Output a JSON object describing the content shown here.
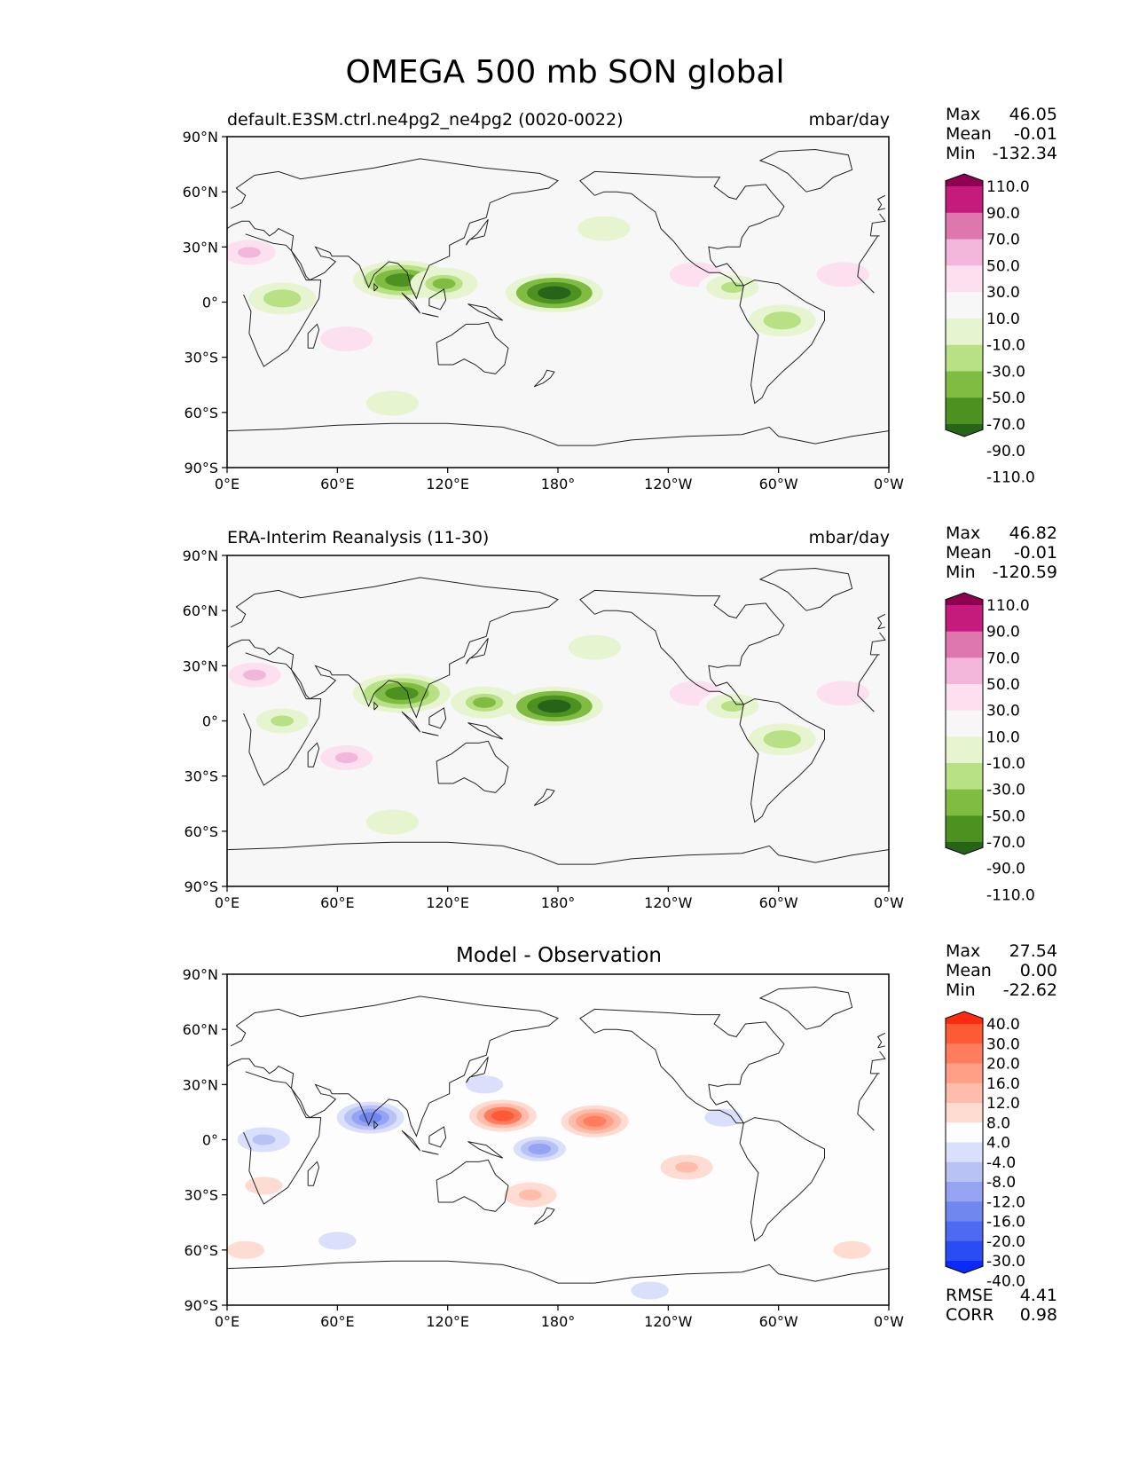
{
  "figure_title": "OMEGA 500 mb SON global",
  "x_ticks": [
    "0°E",
    "60°E",
    "120°E",
    "180°",
    "120°W",
    "60°W",
    "0°W"
  ],
  "y_ticks": [
    "90°N",
    "60°N",
    "30°N",
    "0°",
    "30°S",
    "60°S",
    "90°S"
  ],
  "colors": {
    "land_outline": "#222222",
    "map_background": "#f7f7f7",
    "diff_background": "#fdfdfd"
  },
  "chart_data": [
    {
      "type": "heatmap",
      "title": "default.E3SM.ctrl.ne4pg2_ne4pg2 (0020-0022)",
      "units": "mbar/day",
      "stats": {
        "max_label": "Max",
        "max": "46.05",
        "mean_label": "Mean",
        "mean": "-0.01",
        "min_label": "Min",
        "min": "-132.34"
      },
      "xlim": [
        0,
        360
      ],
      "ylim": [
        -90,
        90
      ],
      "colorbar": {
        "levels": [
          "110.0",
          "90.0",
          "70.0",
          "50.0",
          "30.0",
          "10.0",
          "-10.0",
          "-30.0",
          "-50.0",
          "-70.0",
          "-90.0",
          "-110.0"
        ],
        "colors": [
          "#8e0152",
          "#c51b7d",
          "#de77ae",
          "#f1b6da",
          "#fde0ef",
          "#f7f7f7",
          "#e6f5d0",
          "#b8e186",
          "#7fbc41",
          "#4d9221",
          "#276419"
        ]
      },
      "features": [
        {
          "lon": 12,
          "lat": 27,
          "value": 30
        },
        {
          "lon": 30,
          "lat": 2,
          "value": -45
        },
        {
          "lon": 65,
          "lat": -20,
          "value": 25
        },
        {
          "lon": 95,
          "lat": 12,
          "value": -85
        },
        {
          "lon": 118,
          "lat": 10,
          "value": -55
        },
        {
          "lon": 178,
          "lat": 5,
          "value": -115
        },
        {
          "lon": 205,
          "lat": 40,
          "value": -25
        },
        {
          "lon": 255,
          "lat": 15,
          "value": 20
        },
        {
          "lon": 275,
          "lat": 8,
          "value": -35
        },
        {
          "lon": 302,
          "lat": -10,
          "value": -50
        },
        {
          "lon": 335,
          "lat": 15,
          "value": 25
        },
        {
          "lon": 90,
          "lat": -55,
          "value": -25
        }
      ]
    },
    {
      "type": "heatmap",
      "title": "ERA-Interim Reanalysis (11-30)",
      "units": "mbar/day",
      "stats": {
        "max_label": "Max",
        "max": "46.82",
        "mean_label": "Mean",
        "mean": "-0.01",
        "min_label": "Min",
        "min": "-120.59"
      },
      "xlim": [
        0,
        360
      ],
      "ylim": [
        -90,
        90
      ],
      "colorbar": {
        "levels": [
          "110.0",
          "90.0",
          "70.0",
          "50.0",
          "30.0",
          "10.0",
          "-10.0",
          "-30.0",
          "-50.0",
          "-70.0",
          "-90.0",
          "-110.0"
        ],
        "colors": [
          "#8e0152",
          "#c51b7d",
          "#de77ae",
          "#f1b6da",
          "#fde0ef",
          "#f7f7f7",
          "#e6f5d0",
          "#b8e186",
          "#7fbc41",
          "#4d9221",
          "#276419"
        ]
      },
      "features": [
        {
          "lon": 15,
          "lat": 25,
          "value": 30
        },
        {
          "lon": 30,
          "lat": 0,
          "value": -40
        },
        {
          "lon": 65,
          "lat": -20,
          "value": 30
        },
        {
          "lon": 95,
          "lat": 15,
          "value": -75
        },
        {
          "lon": 140,
          "lat": 10,
          "value": -60
        },
        {
          "lon": 178,
          "lat": 8,
          "value": -110
        },
        {
          "lon": 200,
          "lat": 40,
          "value": -25
        },
        {
          "lon": 255,
          "lat": 15,
          "value": 20
        },
        {
          "lon": 275,
          "lat": 8,
          "value": -35
        },
        {
          "lon": 302,
          "lat": -10,
          "value": -50
        },
        {
          "lon": 335,
          "lat": 15,
          "value": 25
        },
        {
          "lon": 90,
          "lat": -55,
          "value": -25
        }
      ]
    },
    {
      "type": "heatmap",
      "title": "Model - Observation",
      "units": "",
      "stats": {
        "max_label": "Max",
        "max": "27.54",
        "mean_label": "Mean",
        "mean": "0.00",
        "min_label": "Min",
        "min": "-22.62"
      },
      "metrics": {
        "rmse_label": "RMSE",
        "rmse": "4.41",
        "corr_label": "CORR",
        "corr": "0.98"
      },
      "xlim": [
        0,
        360
      ],
      "ylim": [
        -90,
        90
      ],
      "colorbar": {
        "levels": [
          "40.0",
          "30.0",
          "20.0",
          "16.0",
          "12.0",
          "8.0",
          "4.0",
          "-4.0",
          "-8.0",
          "-12.0",
          "-16.0",
          "-20.0",
          "-30.0",
          "-40.0"
        ],
        "colors": [
          "#ff2a10",
          "#ff5a38",
          "#ff7d5c",
          "#ff9f86",
          "#ffbcaa",
          "#ffdcd2",
          "#fdfdfd",
          "#dae0fb",
          "#b8c2f5",
          "#95a4f2",
          "#7187f0",
          "#4e6af0",
          "#2a4cf3",
          "#0a2af7"
        ]
      },
      "features": [
        {
          "lon": 78,
          "lat": 12,
          "value": -20
        },
        {
          "lon": 150,
          "lat": 13,
          "value": 22
        },
        {
          "lon": 200,
          "lat": 10,
          "value": 18
        },
        {
          "lon": 170,
          "lat": -5,
          "value": -14
        },
        {
          "lon": 20,
          "lat": 0,
          "value": -10
        },
        {
          "lon": 140,
          "lat": 30,
          "value": -8
        },
        {
          "lon": 165,
          "lat": -30,
          "value": 10
        },
        {
          "lon": 250,
          "lat": -15,
          "value": 8
        },
        {
          "lon": 60,
          "lat": -55,
          "value": -6
        },
        {
          "lon": 10,
          "lat": -60,
          "value": 6
        },
        {
          "lon": 340,
          "lat": -60,
          "value": 6
        },
        {
          "lon": 230,
          "lat": -82,
          "value": -6
        },
        {
          "lon": 270,
          "lat": 12,
          "value": -8
        },
        {
          "lon": 20,
          "lat": -25,
          "value": 6
        }
      ]
    }
  ]
}
